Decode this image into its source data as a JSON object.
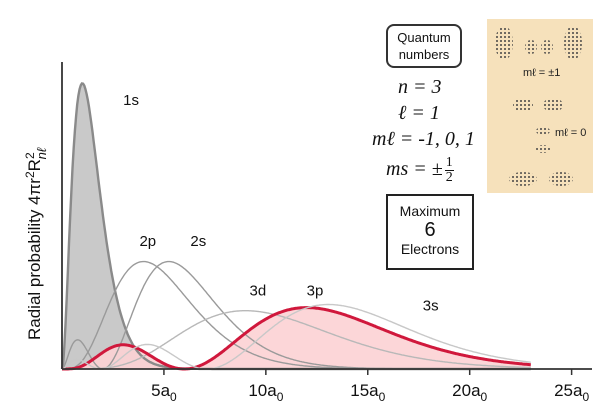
{
  "chart_data": {
    "type": "area",
    "xlabel": "",
    "ylabel": "Radial probability 4πr²R²nℓ",
    "x_ticks": [
      {
        "value": 5,
        "label": "5a",
        "sub": "0"
      },
      {
        "value": 10,
        "label": "10a",
        "sub": "0"
      },
      {
        "value": 15,
        "label": "15a",
        "sub": "0"
      },
      {
        "value": 20,
        "label": "20a",
        "sub": "0"
      },
      {
        "value": 25,
        "label": "25a",
        "sub": "0"
      }
    ],
    "xlim": [
      0,
      26
    ],
    "ylim": [
      0,
      1.0
    ],
    "series": [
      {
        "name": "1s",
        "n": 1,
        "l": 0,
        "color": "#8a8a8a",
        "fill": "#c6c6c6",
        "highlight": false
      },
      {
        "name": "2p",
        "n": 2,
        "l": 1,
        "color": "#9a9a9a",
        "fill": "none",
        "highlight": false
      },
      {
        "name": "2s",
        "n": 2,
        "l": 0,
        "color": "#9a9a9a",
        "fill": "none",
        "highlight": false
      },
      {
        "name": "3d",
        "n": 3,
        "l": 2,
        "color": "#b8b8b8",
        "fill": "none",
        "highlight": false
      },
      {
        "name": "3p",
        "n": 3,
        "l": 1,
        "color": "#d0183c",
        "fill": "#fcd2d4",
        "highlight": true
      },
      {
        "name": "3s",
        "n": 3,
        "l": 0,
        "color": "#c8c8c8",
        "fill": "none",
        "highlight": false
      }
    ],
    "peaks": {
      "1s": 0.93,
      "2p": 0.35,
      "2s": 0.35,
      "3d": 0.19,
      "3p": 0.2,
      "3s": 0.21
    },
    "grid": false
  },
  "quantum": {
    "box_line1": "Quantum",
    "box_line2": "numbers",
    "n_text": "n = 3",
    "l_text": "ℓ = 1",
    "ml_text": "mℓ = -1, 0, 1",
    "ms_prefix": "ms = ±",
    "ms_num": "1",
    "ms_den": "2"
  },
  "max_box": {
    "line1": "Maximum",
    "line2": "6",
    "line3": "Electrons"
  },
  "orbitals": {
    "label_pm1": "mℓ = ±1",
    "label_0": "mℓ = 0"
  }
}
